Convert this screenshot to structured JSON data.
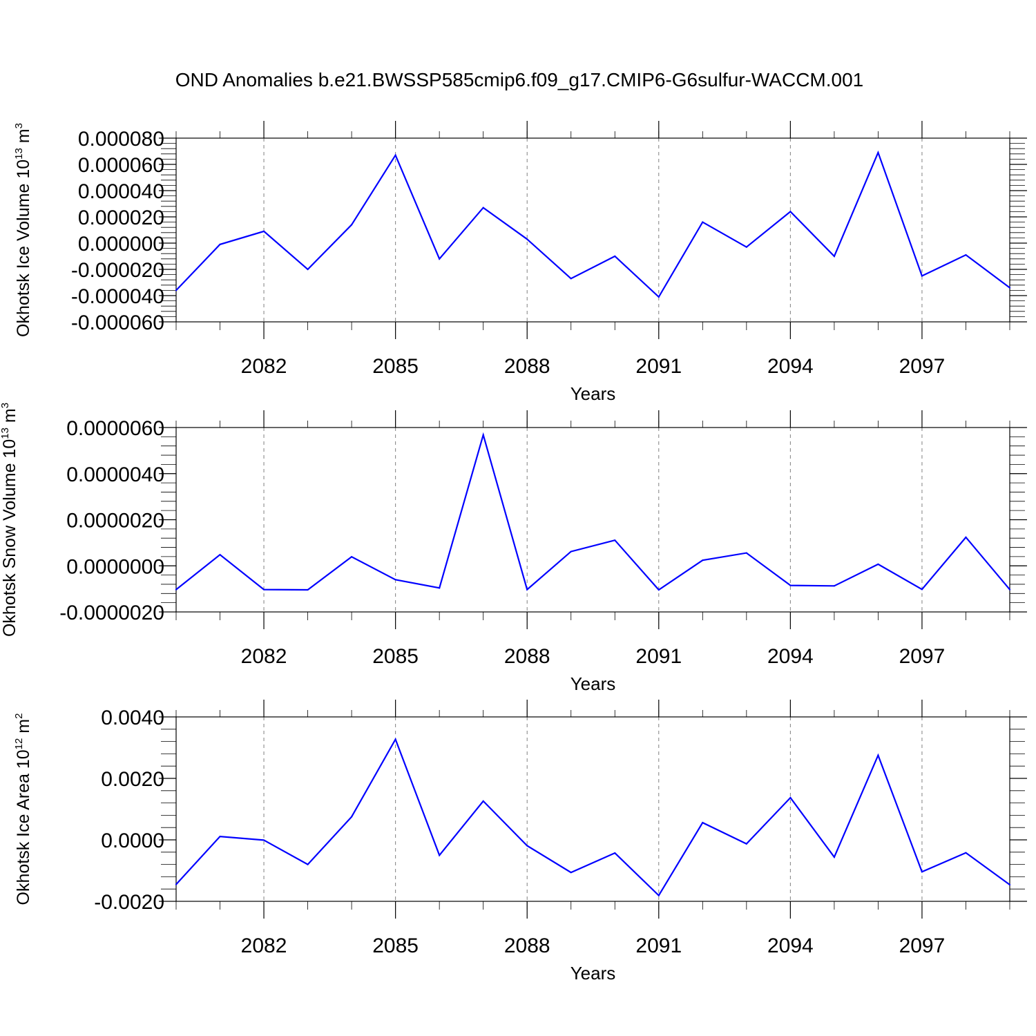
{
  "page_title": "OND Anomalies b.e21.BWSSP585cmip6.f09_g17.CMIP6-G6sulfur-WACCM.001",
  "colors": {
    "line": "#0000ff",
    "axis": "#000000",
    "grid": "#7f7f7f"
  },
  "chart_data": [
    {
      "type": "line",
      "ylabel": {
        "text": "Okhotsk Ice Volume 10",
        "exp": "13",
        "unit": " m",
        "unit_exp": "3"
      },
      "xlabel": "Years",
      "xlim": [
        2080,
        2099
      ],
      "x_ticks": [
        2082,
        2085,
        2088,
        2091,
        2094,
        2097
      ],
      "x_tick_labels": [
        "2082",
        "2085",
        "2088",
        "2091",
        "2094",
        "2097"
      ],
      "ylim": [
        -6e-05,
        8e-05
      ],
      "y_ticks": [
        -6e-05,
        -4e-05,
        -2e-05,
        0,
        2e-05,
        4e-05,
        6e-05,
        8e-05
      ],
      "y_tick_labels": [
        "-0.000060",
        "-0.000040",
        "-0.000020",
        "0.000000",
        "0.000020",
        "0.000040",
        "0.000060",
        "0.000080"
      ],
      "y_minor_step": 4e-06,
      "grid": "vertical dashed at major x ticks",
      "x": [
        2080,
        2081,
        2082,
        2083,
        2084,
        2085,
        2086,
        2087,
        2088,
        2089,
        2090,
        2091,
        2092,
        2093,
        2094,
        2095,
        2096,
        2097,
        2098,
        2099
      ],
      "values": [
        -3.6e-05,
        -1e-06,
        9e-06,
        -2e-05,
        1.4e-05,
        6.7e-05,
        -1.2e-05,
        2.7e-05,
        3e-06,
        -2.7e-05,
        -1e-05,
        -4.1e-05,
        1.6e-05,
        -3e-06,
        2.4e-05,
        -1e-05,
        6.9e-05,
        -2.5e-05,
        -9e-06,
        -3.4e-05
      ]
    },
    {
      "type": "line",
      "ylabel": {
        "text": "Okhotsk Snow Volume 10",
        "exp": "13",
        "unit": " m",
        "unit_exp": "3"
      },
      "xlabel": "Years",
      "xlim": [
        2080,
        2099
      ],
      "x_ticks": [
        2082,
        2085,
        2088,
        2091,
        2094,
        2097
      ],
      "x_tick_labels": [
        "2082",
        "2085",
        "2088",
        "2091",
        "2094",
        "2097"
      ],
      "ylim": [
        -2e-06,
        6e-06
      ],
      "y_ticks": [
        -2e-06,
        0,
        2e-06,
        4e-06,
        6e-06
      ],
      "y_tick_labels": [
        "-0.0000020",
        "0.0000000",
        "0.0000020",
        "0.0000040",
        "0.0000060"
      ],
      "y_minor_step": 4e-07,
      "grid": "vertical dashed at major x ticks",
      "x": [
        2080,
        2081,
        2082,
        2083,
        2084,
        2085,
        2086,
        2087,
        2088,
        2089,
        2090,
        2091,
        2092,
        2093,
        2094,
        2095,
        2096,
        2097,
        2098,
        2099
      ],
      "values": [
        -1.03e-06,
        4.8e-07,
        -1.03e-06,
        -1.04e-06,
        3.9e-07,
        -6e-07,
        -9.6e-07,
        5.68e-06,
        -1.03e-06,
        6.2e-07,
        1.11e-06,
        -1.04e-06,
        2.4e-07,
        5.6e-07,
        -8.5e-07,
        -8.7e-07,
        7e-08,
        -1.02e-06,
        1.24e-06,
        -1.03e-06
      ]
    },
    {
      "type": "line",
      "ylabel": {
        "text": "Okhotsk Ice Area 10",
        "exp": "12",
        "unit": " m",
        "unit_exp": "2"
      },
      "xlabel": "Years",
      "xlim": [
        2080,
        2099
      ],
      "x_ticks": [
        2082,
        2085,
        2088,
        2091,
        2094,
        2097
      ],
      "x_tick_labels": [
        "2082",
        "2085",
        "2088",
        "2091",
        "2094",
        "2097"
      ],
      "ylim": [
        -0.002,
        0.004
      ],
      "y_ticks": [
        -0.002,
        0,
        0.002,
        0.004
      ],
      "y_tick_labels": [
        "-0.0020",
        "0.0000",
        "0.0020",
        "0.0040"
      ],
      "y_minor_step": 0.0004,
      "grid": "vertical dashed at major x ticks",
      "x": [
        2080,
        2081,
        2082,
        2083,
        2084,
        2085,
        2086,
        2087,
        2088,
        2089,
        2090,
        2091,
        2092,
        2093,
        2094,
        2095,
        2096,
        2097,
        2098,
        2099
      ],
      "values": [
        -0.00145,
        0.00011,
        -1e-05,
        -0.0008,
        0.00075,
        0.00327,
        -0.0005,
        0.00126,
        -0.00019,
        -0.00106,
        -0.00043,
        -0.00181,
        0.00056,
        -0.00013,
        0.00137,
        -0.00056,
        0.00275,
        -0.00104,
        -0.00042,
        -0.00146
      ]
    }
  ]
}
